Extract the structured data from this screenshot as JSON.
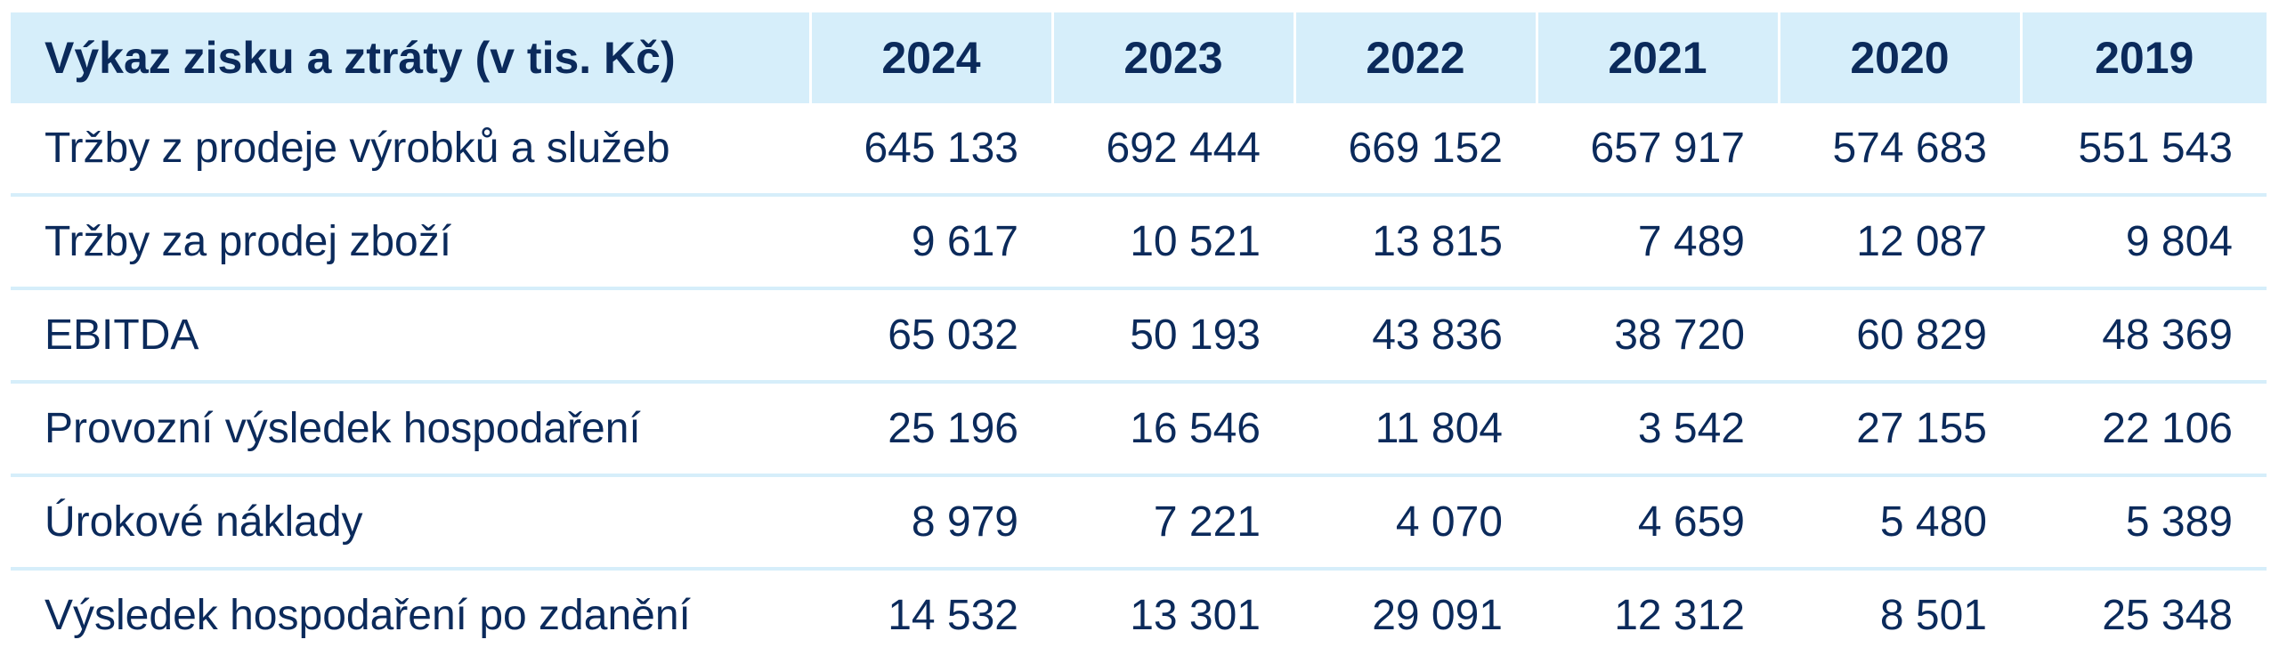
{
  "table": {
    "title": "Výkaz zisku a ztráty (v tis. Kč)",
    "years": [
      "2024",
      "2023",
      "2022",
      "2021",
      "2020",
      "2019"
    ],
    "rows": [
      {
        "label": "Tržby z prodeje výrobků a služeb",
        "values": [
          "645 133",
          "692 444",
          "669 152",
          "657 917",
          "574 683",
          "551 543"
        ]
      },
      {
        "label": "Tržby za prodej zboží",
        "values": [
          "9 617",
          "10 521",
          "13 815",
          "7 489",
          "12 087",
          "9 804"
        ]
      },
      {
        "label": "EBITDA",
        "values": [
          "65 032",
          "50 193",
          "43 836",
          "38 720",
          "60 829",
          "48 369"
        ]
      },
      {
        "label": "Provozní výsledek hospodaření",
        "values": [
          "25 196",
          "16 546",
          "11 804",
          "3 542",
          "27 155",
          "22 106"
        ]
      },
      {
        "label": "Úrokové náklady",
        "values": [
          "8 979",
          "7 221",
          "4 070",
          "4 659",
          "5 480",
          "5 389"
        ]
      },
      {
        "label": "Výsledek hospodaření po zdanění",
        "values": [
          "14 532",
          "13 301",
          "29 091",
          "12 312",
          "8 501",
          "25 348"
        ]
      }
    ]
  },
  "colors": {
    "header_background": "#d6eefa",
    "text": "#0b2a5b",
    "row_divider": "#d6eefa"
  }
}
